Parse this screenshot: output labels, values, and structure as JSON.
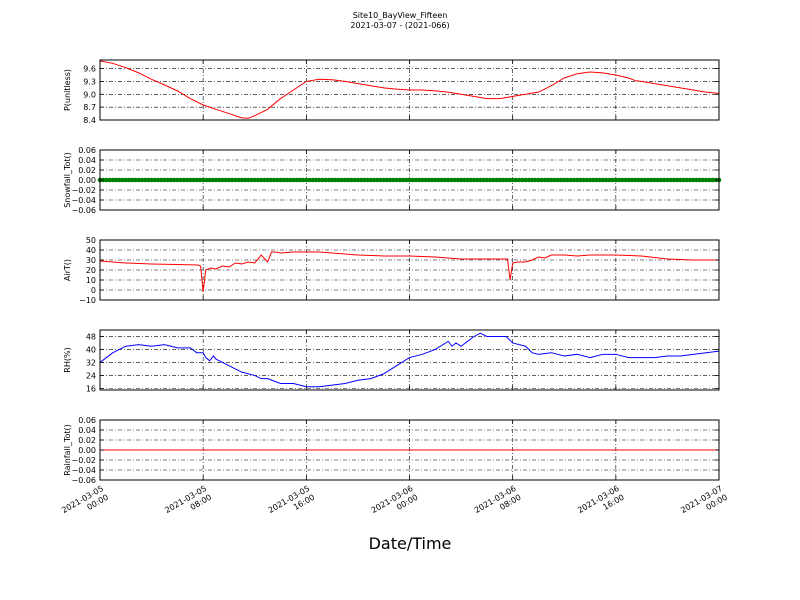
{
  "figure": {
    "title": "Site10_BayView_Fifteen",
    "subtitle": "2021-03-07 - (2021-066)",
    "xlabel": "Date/Time"
  },
  "chart_data": [
    {
      "type": "line",
      "ylabel": "P(unitless)",
      "ylim": [
        8.4,
        9.8
      ],
      "yticks": [
        8.4,
        8.7,
        9.0,
        9.3,
        9.6
      ],
      "ytick_labels": [
        "8.4",
        "8.7",
        "9.0",
        "9.3",
        "9.6"
      ],
      "xlim": [
        "2021-03-05 00:00",
        "2021-03-07 00:00"
      ],
      "xtick_labels": [
        "2021-03-05 00:00",
        "2021-03-05 08:00",
        "2021-03-05 16:00",
        "2021-03-06 00:00",
        "2021-03-06 08:00",
        "2021-03-06 16:00",
        "2021-03-07 00:00"
      ],
      "grid": true,
      "color": "#ff0000",
      "series": [
        {
          "x_hours": [
            0,
            1,
            2,
            3,
            4,
            5,
            6,
            7,
            8,
            9,
            10,
            11,
            11.5,
            12,
            13,
            14,
            15,
            16,
            17,
            18,
            19,
            20,
            21,
            22,
            23,
            24,
            25,
            26,
            27,
            28,
            29,
            30,
            31,
            32,
            33,
            34,
            35,
            36,
            37,
            38,
            39,
            40,
            41,
            41.5,
            42,
            43,
            44,
            45,
            46,
            47,
            48
          ],
          "values": [
            9.78,
            9.72,
            9.62,
            9.5,
            9.35,
            9.22,
            9.08,
            8.9,
            8.75,
            8.65,
            8.55,
            8.45,
            8.44,
            8.5,
            8.65,
            8.9,
            9.1,
            9.3,
            9.35,
            9.34,
            9.3,
            9.25,
            9.2,
            9.15,
            9.12,
            9.1,
            9.1,
            9.08,
            9.05,
            9.0,
            8.95,
            8.9,
            8.9,
            8.95,
            9.0,
            9.05,
            9.2,
            9.38,
            9.48,
            9.52,
            9.5,
            9.45,
            9.38,
            9.32,
            9.3,
            9.25,
            9.2,
            9.15,
            9.1,
            9.05,
            9.02
          ]
        }
      ]
    },
    {
      "type": "scatter",
      "ylabel": "Snowfall_Tot()",
      "ylim": [
        -0.06,
        0.06
      ],
      "yticks": [
        -0.06,
        -0.04,
        -0.02,
        0.0,
        0.02,
        0.04,
        0.06
      ],
      "ytick_labels": [
        "−0.06",
        "−0.04",
        "−0.02",
        "0.00",
        "0.02",
        "0.04",
        "0.06"
      ],
      "grid": true,
      "color": "#008000",
      "series": [
        {
          "x_hours": "every 15 minutes, 0 to 48",
          "values": "all 0.0"
        }
      ]
    },
    {
      "type": "line",
      "ylabel": "AirT()",
      "ylim": [
        -10,
        50
      ],
      "yticks": [
        -10,
        0,
        10,
        20,
        30,
        40,
        50
      ],
      "ytick_labels": [
        "−10",
        "0",
        "10",
        "20",
        "30",
        "40",
        "50"
      ],
      "grid": true,
      "color": "#ff0000",
      "series": [
        {
          "x_hours": [
            0,
            2,
            4,
            6,
            7.6,
            7.8,
            8.0,
            8.2,
            8.6,
            9,
            9.5,
            10,
            10.5,
            11,
            11.5,
            12,
            12.5,
            13,
            13.3,
            13.6,
            14,
            15,
            16,
            17,
            18,
            19,
            20,
            22,
            24,
            26,
            28,
            29,
            30,
            31,
            31.6,
            31.8,
            32.0,
            32.4,
            33,
            33.5,
            34,
            34.5,
            35,
            36,
            37,
            38,
            40,
            42,
            44,
            46,
            48
          ],
          "values": [
            29,
            27,
            26,
            25.5,
            25,
            24,
            -2,
            20,
            22,
            21,
            24,
            23,
            27,
            26,
            28,
            27,
            35,
            28,
            38,
            38,
            37,
            38,
            38,
            38,
            37,
            36,
            35,
            34,
            34,
            33,
            31,
            31,
            31,
            31,
            31,
            10,
            27,
            28,
            28,
            30,
            33,
            32,
            35,
            35,
            34,
            35,
            35,
            34,
            31,
            30,
            30
          ]
        }
      ]
    },
    {
      "type": "line",
      "ylabel": "RH(%)",
      "ylim": [
        15,
        52
      ],
      "yticks": [
        16,
        24,
        32,
        40,
        48
      ],
      "ytick_labels": [
        "16",
        "24",
        "32",
        "40",
        "48"
      ],
      "grid": true,
      "color": "#0000ff",
      "series": [
        {
          "x_hours": [
            0,
            1,
            2,
            3,
            4,
            5,
            6,
            7,
            7.5,
            8,
            8.2,
            8.5,
            8.8,
            9,
            9.5,
            10,
            10.5,
            11,
            12,
            12.5,
            13,
            14,
            15,
            15.5,
            16,
            17,
            18,
            19,
            20,
            21,
            22,
            23,
            24,
            25,
            26,
            27,
            27.3,
            27.6,
            28,
            28.5,
            29,
            29.5,
            30,
            30.5,
            31,
            31.5,
            32,
            33,
            33.5,
            34,
            35,
            36,
            37,
            38,
            39,
            40,
            41,
            42,
            43,
            44,
            45,
            46,
            47,
            48
          ],
          "values": [
            32,
            38,
            42,
            43,
            42,
            43,
            41,
            41,
            38,
            38,
            35,
            33,
            36,
            34,
            32,
            30,
            28,
            26,
            24,
            22,
            22,
            19,
            19,
            18,
            17,
            17,
            18,
            19,
            21,
            22,
            25,
            30,
            35,
            37,
            40,
            45,
            42,
            44,
            42,
            45,
            48,
            50,
            48,
            48,
            48,
            48,
            44,
            42,
            38,
            37,
            38,
            36,
            37,
            35,
            37,
            37,
            35,
            35,
            35,
            36,
            36,
            37,
            38,
            39
          ]
        }
      ]
    },
    {
      "type": "line",
      "ylabel": "Rainfall_Tot()",
      "ylim": [
        -0.06,
        0.06
      ],
      "yticks": [
        -0.06,
        -0.04,
        -0.02,
        0.0,
        0.02,
        0.04,
        0.06
      ],
      "ytick_labels": [
        "−0.06",
        "−0.04",
        "−0.02",
        "0.00",
        "0.02",
        "0.04",
        "0.06"
      ],
      "grid": true,
      "color": "#ff0000",
      "series": [
        {
          "x_hours": [
            0,
            48
          ],
          "values": [
            0,
            0
          ]
        }
      ]
    }
  ]
}
